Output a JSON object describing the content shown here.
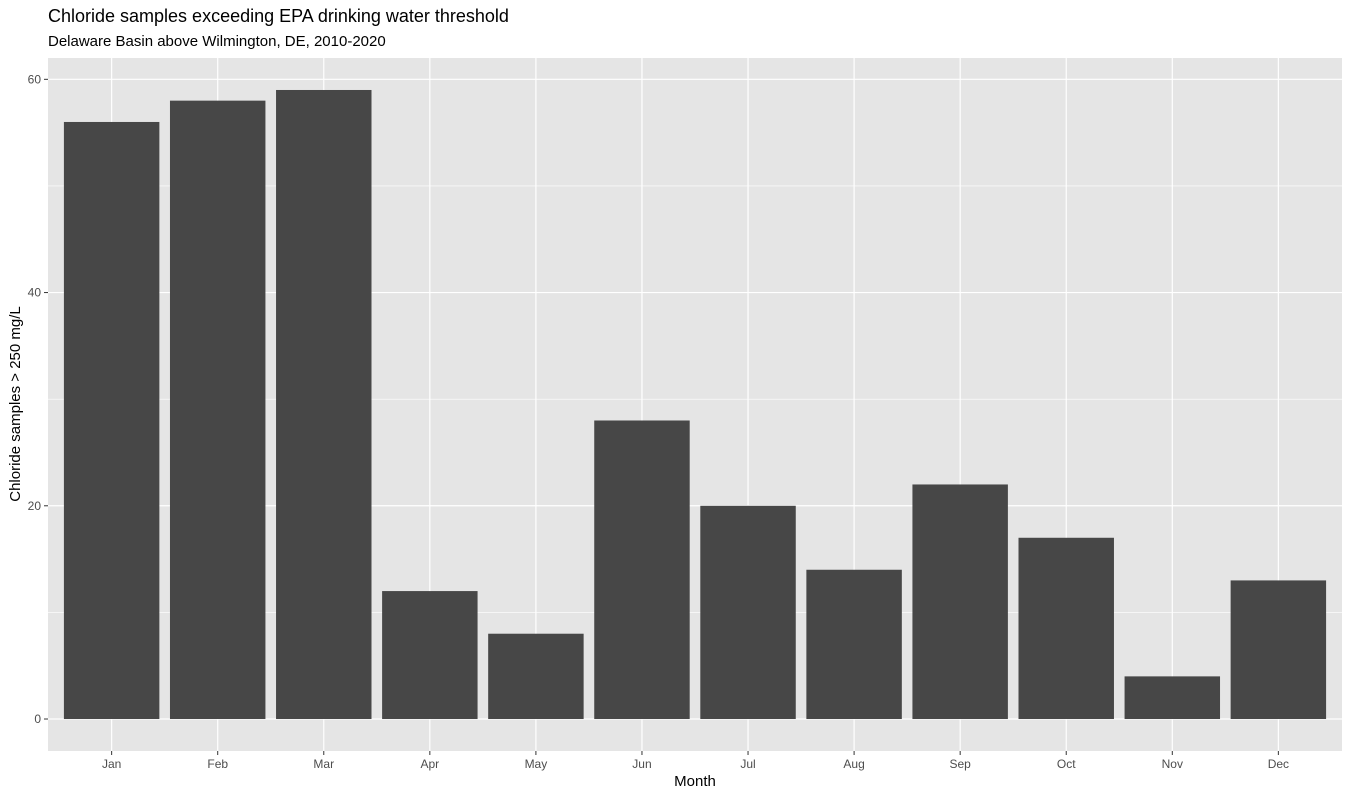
{
  "chart_data": {
    "type": "bar",
    "title": "Chloride samples exceeding EPA drinking water threshold",
    "subtitle": "Delaware Basin above Wilmington, DE, 2010-2020",
    "xlabel": "Month",
    "ylabel": "Chloride samples > 250 mg/L",
    "categories": [
      "Jan",
      "Feb",
      "Mar",
      "Apr",
      "May",
      "Jun",
      "Jul",
      "Aug",
      "Sep",
      "Oct",
      "Nov",
      "Dec"
    ],
    "values": [
      56,
      58,
      59,
      12,
      8,
      28,
      20,
      14,
      22,
      17,
      4,
      13
    ],
    "ylim": [
      -3,
      62
    ],
    "yticks": [
      0,
      20,
      40,
      60
    ],
    "ytick_labels": [
      "0",
      "20",
      "40",
      "60"
    ],
    "grid": true,
    "legend": "none",
    "colors": {
      "bar": "#474747",
      "panel": "#e5e5e5",
      "grid": "#ffffff"
    }
  }
}
